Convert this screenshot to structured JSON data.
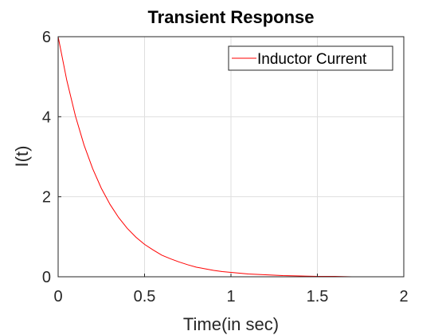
{
  "chart_data": {
    "type": "line",
    "title": "Transient Response",
    "xlabel": "Time(in sec)",
    "ylabel": "I(t)",
    "xlim": [
      0,
      2
    ],
    "ylim": [
      0,
      6
    ],
    "xticks": [
      0,
      0.5,
      1,
      1.5,
      2
    ],
    "xtick_labels": [
      "0",
      "0.5",
      "1",
      "1.5",
      "2"
    ],
    "yticks": [
      0,
      2,
      4,
      6
    ],
    "ytick_labels": [
      "0",
      "2",
      "4",
      "6"
    ],
    "grid": true,
    "legend_position": "top-right",
    "series": [
      {
        "name": "Inductor Current",
        "color": "#ff0000",
        "x": [
          0,
          0.05,
          0.1,
          0.15,
          0.2,
          0.25,
          0.3,
          0.35,
          0.4,
          0.45,
          0.5,
          0.55,
          0.6,
          0.65,
          0.7,
          0.75,
          0.8,
          0.85,
          0.9,
          0.95,
          1.0,
          1.1,
          1.2,
          1.3,
          1.4,
          1.5,
          1.6,
          1.7,
          1.8,
          1.9,
          2.0
        ],
        "y": [
          6.0,
          4.91,
          4.02,
          3.29,
          2.7,
          2.21,
          1.81,
          1.48,
          1.21,
          0.99,
          0.81,
          0.67,
          0.54,
          0.45,
          0.37,
          0.3,
          0.24,
          0.2,
          0.16,
          0.13,
          0.11,
          0.07,
          0.05,
          0.03,
          0.02,
          0.01,
          0.01,
          0.0,
          0.0,
          0.0,
          0.0
        ]
      }
    ]
  }
}
